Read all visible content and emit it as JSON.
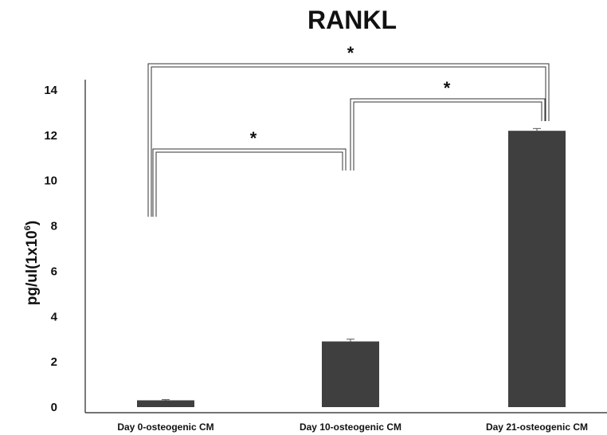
{
  "chart_data": {
    "type": "bar",
    "title": "RANKL",
    "ylabel_base": "pg/ul(1x10",
    "ylabel_sup": "6",
    "ylabel_close": ")",
    "xlabel": "",
    "categories": [
      "Day 0-osteogenic CM",
      "Day 10-osteogenic CM",
      "Day 21-osteogenic CM"
    ],
    "values": [
      0.3,
      2.9,
      12.2
    ],
    "errors": [
      0.03,
      0.1,
      0.1
    ],
    "yticks": [
      "0",
      "2",
      "4",
      "6",
      "8",
      "10",
      "12",
      "14"
    ],
    "ylim": [
      0,
      14
    ],
    "bar_color": "#3f3f3f",
    "grid": false,
    "significance": [
      {
        "from": 0,
        "to": 1,
        "label": "*"
      },
      {
        "from": 1,
        "to": 2,
        "label": "*"
      },
      {
        "from": 0,
        "to": 2,
        "label": "*"
      }
    ]
  }
}
